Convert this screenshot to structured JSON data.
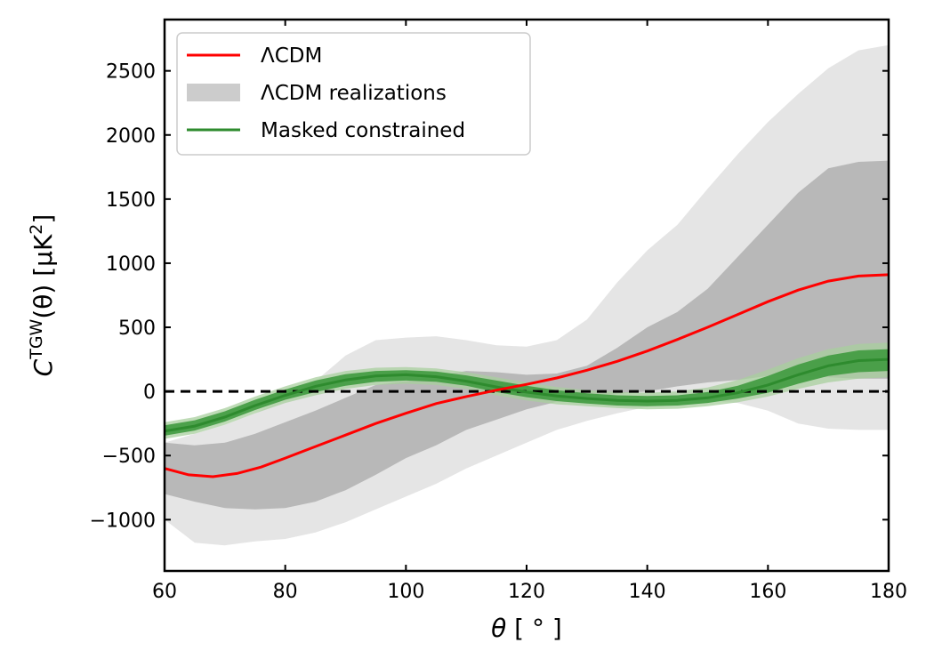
{
  "chart_data": {
    "type": "line",
    "title": "",
    "xlabel": "θ [ ° ]",
    "ylabel": "C^TGW(θ) [μK²]",
    "ylabel_parts": {
      "base": "C",
      "sup": "TGW",
      "args": "(θ) [μK",
      "exp": "2",
      "close": "]"
    },
    "xlabel_parts": {
      "var": "θ",
      "unit": " [ ° ]"
    },
    "xlim": [
      60,
      180
    ],
    "ylim": [
      -1400,
      2900
    ],
    "xticks": [
      60,
      80,
      100,
      120,
      140,
      160,
      180
    ],
    "yticks": [
      -1000,
      -500,
      0,
      500,
      1000,
      1500,
      2000,
      2500
    ],
    "ytick_labels": [
      "−1000",
      "−500",
      "0",
      "500",
      "1000",
      "1500",
      "2000",
      "2500"
    ],
    "grid": false,
    "legend_position": "top-left",
    "colors": {
      "lcdm": "#ff0000",
      "realizations_outer": "#e5e5e5",
      "realizations_inner": "#b8b8b8",
      "legend_patch": "#cccccc",
      "masked_outer": "#a8cf9e",
      "masked_inner": "#3f9a3f",
      "masked_line": "#2e8b2e",
      "zero_line": "#000000"
    },
    "series": [
      {
        "name": "ΛCDM",
        "kind": "line",
        "x": [
          60,
          64,
          68,
          72,
          76,
          80,
          85,
          90,
          95,
          100,
          105,
          110,
          115,
          120,
          125,
          130,
          135,
          140,
          145,
          150,
          155,
          160,
          165,
          170,
          175,
          180
        ],
        "y": [
          -600,
          -650,
          -665,
          -640,
          -590,
          -520,
          -430,
          -340,
          -250,
          -170,
          -95,
          -40,
          10,
          55,
          105,
          165,
          235,
          315,
          405,
          500,
          600,
          700,
          790,
          860,
          900,
          910
        ]
      },
      {
        "name": "ΛCDM realizations",
        "kind": "band",
        "x": [
          60,
          65,
          70,
          75,
          80,
          85,
          90,
          95,
          100,
          105,
          110,
          115,
          120,
          125,
          130,
          135,
          140,
          145,
          150,
          155,
          160,
          165,
          170,
          175,
          180
        ],
        "outer_upper": [
          -400,
          -330,
          -260,
          -170,
          -50,
          80,
          280,
          400,
          420,
          430,
          400,
          360,
          350,
          400,
          560,
          850,
          1100,
          1300,
          1580,
          1850,
          2100,
          2320,
          2520,
          2660,
          2700
        ],
        "outer_lower": [
          -1000,
          -1180,
          -1200,
          -1170,
          -1150,
          -1100,
          -1020,
          -920,
          -820,
          -720,
          -600,
          -500,
          -400,
          -300,
          -230,
          -170,
          -120,
          -80,
          -70,
          -90,
          -150,
          -250,
          -290,
          -300,
          -300
        ],
        "inner_upper": [
          -400,
          -420,
          -400,
          -330,
          -240,
          -150,
          -50,
          50,
          80,
          120,
          160,
          150,
          130,
          140,
          200,
          340,
          500,
          620,
          800,
          1050,
          1300,
          1550,
          1740,
          1790,
          1800
        ],
        "inner_lower": [
          -800,
          -860,
          -910,
          -920,
          -910,
          -860,
          -770,
          -650,
          -520,
          -420,
          -300,
          -220,
          -140,
          -80,
          -50,
          -20,
          0,
          40,
          70,
          90,
          120,
          120,
          110,
          100,
          100
        ]
      },
      {
        "name": "Masked constrained",
        "kind": "band",
        "x": [
          60,
          65,
          70,
          75,
          80,
          85,
          90,
          95,
          100,
          105,
          110,
          115,
          120,
          125,
          130,
          135,
          140,
          145,
          150,
          155,
          160,
          165,
          170,
          175,
          180
        ],
        "center": [
          -310,
          -270,
          -200,
          -110,
          -30,
          40,
          90,
          120,
          130,
          115,
          80,
          35,
          -5,
          -35,
          -55,
          -70,
          -75,
          -70,
          -50,
          -10,
          50,
          130,
          200,
          240,
          250
        ],
        "outer_upper": [
          -240,
          -200,
          -130,
          -40,
          40,
          110,
          160,
          185,
          190,
          180,
          150,
          110,
          70,
          35,
          10,
          -5,
          -10,
          0,
          30,
          90,
          170,
          260,
          330,
          370,
          380
        ],
        "outer_lower": [
          -370,
          -330,
          -260,
          -170,
          -90,
          -30,
          20,
          50,
          60,
          50,
          20,
          -30,
          -70,
          -100,
          -115,
          -130,
          -140,
          -135,
          -115,
          -85,
          -40,
          20,
          70,
          100,
          110
        ],
        "inner_upper": [
          -265,
          -225,
          -155,
          -65,
          15,
          85,
          135,
          160,
          165,
          155,
          125,
          85,
          45,
          10,
          -15,
          -30,
          -35,
          -30,
          -5,
          45,
          120,
          210,
          280,
          320,
          330
        ],
        "inner_lower": [
          -345,
          -305,
          -235,
          -145,
          -65,
          -5,
          45,
          75,
          85,
          75,
          45,
          -5,
          -45,
          -75,
          -95,
          -110,
          -115,
          -110,
          -90,
          -55,
          -10,
          60,
          120,
          150,
          160
        ]
      }
    ],
    "legend": [
      "ΛCDM",
      "ΛCDM realizations",
      "Masked constrained"
    ]
  }
}
